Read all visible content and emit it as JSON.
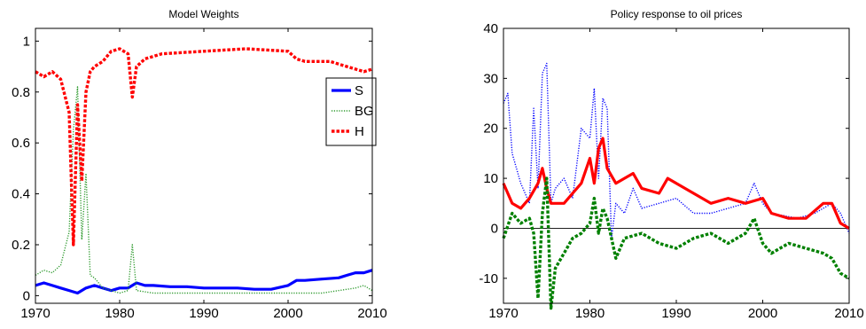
{
  "chart_data": [
    {
      "type": "line",
      "title": "Model Weights",
      "xlabel": "",
      "ylabel": "",
      "xlim": [
        1970,
        2010
      ],
      "ylim": [
        -0.03,
        1.05
      ],
      "xticks": [
        1970,
        1980,
        1990,
        2000,
        2010
      ],
      "yticks": [
        0,
        0.2,
        0.4,
        0.6,
        0.8,
        1
      ],
      "ytick_labels": [
        "0",
        "0.2",
        "0.4",
        "0.6",
        "0.8",
        "1"
      ],
      "grid": false,
      "legend_position": "top-right",
      "series": [
        {
          "name": "S",
          "color": "#0000ff",
          "style": "solid",
          "x": [
            1970,
            1971,
            1972,
            1973,
            1974,
            1975,
            1976,
            1977,
            1978,
            1979,
            1980,
            1981,
            1982,
            1983,
            1984,
            1986,
            1988,
            1990,
            1992,
            1994,
            1996,
            1998,
            2000,
            2001,
            2002,
            2004,
            2006,
            2007,
            2008,
            2009,
            2010
          ],
          "y": [
            0.04,
            0.05,
            0.04,
            0.03,
            0.02,
            0.01,
            0.03,
            0.04,
            0.03,
            0.02,
            0.03,
            0.03,
            0.05,
            0.04,
            0.04,
            0.035,
            0.035,
            0.03,
            0.03,
            0.03,
            0.025,
            0.025,
            0.04,
            0.06,
            0.06,
            0.065,
            0.07,
            0.08,
            0.09,
            0.09,
            0.1
          ]
        },
        {
          "name": "BG",
          "color": "#2e9a2e",
          "style": "dotted",
          "x": [
            1970,
            1971,
            1972,
            1973,
            1974,
            1974.5,
            1975,
            1975.5,
            1976,
            1976.5,
            1977,
            1978,
            1980,
            1981,
            1981.5,
            1982,
            1984,
            1990,
            2000,
            2004,
            2008,
            2009,
            2010
          ],
          "y": [
            0.08,
            0.1,
            0.09,
            0.12,
            0.25,
            0.65,
            0.82,
            0.22,
            0.48,
            0.08,
            0.07,
            0.03,
            0.01,
            0.02,
            0.2,
            0.02,
            0.01,
            0.01,
            0.01,
            0.01,
            0.03,
            0.04,
            0.02
          ]
        },
        {
          "name": "H",
          "color": "#ff0000",
          "style": "dashed",
          "x": [
            1970,
            1971,
            1972,
            1973,
            1974,
            1974.5,
            1975,
            1975.5,
            1976,
            1976.5,
            1977,
            1978,
            1979,
            1980,
            1981,
            1981.5,
            1982,
            1983,
            1985,
            1990,
            1995,
            2000,
            2001,
            2002,
            2005,
            2007,
            2008,
            2009,
            2010
          ],
          "y": [
            0.88,
            0.86,
            0.88,
            0.85,
            0.72,
            0.2,
            0.75,
            0.45,
            0.8,
            0.88,
            0.9,
            0.92,
            0.96,
            0.97,
            0.95,
            0.78,
            0.9,
            0.93,
            0.95,
            0.96,
            0.97,
            0.96,
            0.93,
            0.92,
            0.92,
            0.9,
            0.89,
            0.88,
            0.89
          ]
        }
      ]
    },
    {
      "type": "line",
      "title": "Policy response to oil prices",
      "xlabel": "",
      "ylabel": "",
      "xlim": [
        1970,
        2010
      ],
      "ylim": [
        -15,
        40
      ],
      "xticks": [
        1970,
        1980,
        1990,
        2000,
        2010
      ],
      "yticks": [
        -10,
        0,
        10,
        20,
        30,
        40
      ],
      "grid": false,
      "zero_line": true,
      "series": [
        {
          "color": "#0000ff",
          "style": "dotted",
          "x": [
            1970,
            1970.5,
            1971,
            1972,
            1973,
            1973.5,
            1974,
            1974.5,
            1975,
            1975.5,
            1976,
            1977,
            1978,
            1979,
            1980,
            1980.5,
            1981,
            1981.5,
            1982,
            1982.5,
            1983,
            1984,
            1985,
            1986,
            1988,
            1990,
            1992,
            1994,
            1996,
            1998,
            1999,
            2000,
            2001,
            2004,
            2006,
            2007,
            2008,
            2009,
            2010
          ],
          "y": [
            25,
            27,
            15,
            9,
            5,
            24,
            8,
            31,
            33,
            5,
            8,
            10,
            6,
            20,
            18,
            28,
            10,
            26,
            24,
            -2,
            5,
            3,
            8,
            4,
            5,
            6,
            3,
            3,
            4,
            5,
            9,
            5,
            3,
            2,
            3,
            4,
            5,
            3,
            -1
          ]
        },
        {
          "color": "#ff0000",
          "style": "solid",
          "x": [
            1970,
            1971,
            1972,
            1973,
            1974,
            1974.5,
            1975,
            1975.5,
            1976,
            1977,
            1978,
            1979,
            1980,
            1980.5,
            1981,
            1981.5,
            1982,
            1983,
            1984,
            1985,
            1986,
            1988,
            1989,
            1990,
            1992,
            1994,
            1996,
            1998,
            2000,
            2001,
            2003,
            2005,
            2007,
            2008,
            2009,
            2010
          ],
          "y": [
            9,
            5,
            4,
            6,
            9,
            12,
            8,
            5,
            5,
            5,
            7,
            9,
            14,
            9,
            16,
            18,
            12,
            9,
            10,
            11,
            8,
            7,
            10,
            9,
            7,
            5,
            6,
            5,
            6,
            3,
            2,
            2,
            5,
            5,
            1,
            0
          ]
        },
        {
          "color": "#008000",
          "style": "dashed",
          "x": [
            1970,
            1971,
            1972,
            1973,
            1973.5,
            1974,
            1974.5,
            1975,
            1975.5,
            1976,
            1977,
            1978,
            1979,
            1980,
            1980.5,
            1981,
            1981.5,
            1982,
            1983,
            1984,
            1986,
            1988,
            1990,
            1992,
            1994,
            1996,
            1998,
            1999,
            2000,
            2001,
            2003,
            2005,
            2007,
            2008,
            2009,
            2010
          ],
          "y": [
            -2,
            3,
            1,
            2,
            -1,
            -14,
            3,
            10,
            -16,
            -8,
            -5,
            -2,
            -1,
            1,
            6,
            -1,
            4,
            2,
            -6,
            -2,
            -1,
            -3,
            -4,
            -2,
            -1,
            -3,
            -1,
            2,
            -3,
            -5,
            -3,
            -4,
            -5,
            -6,
            -9,
            -10
          ]
        }
      ]
    }
  ]
}
